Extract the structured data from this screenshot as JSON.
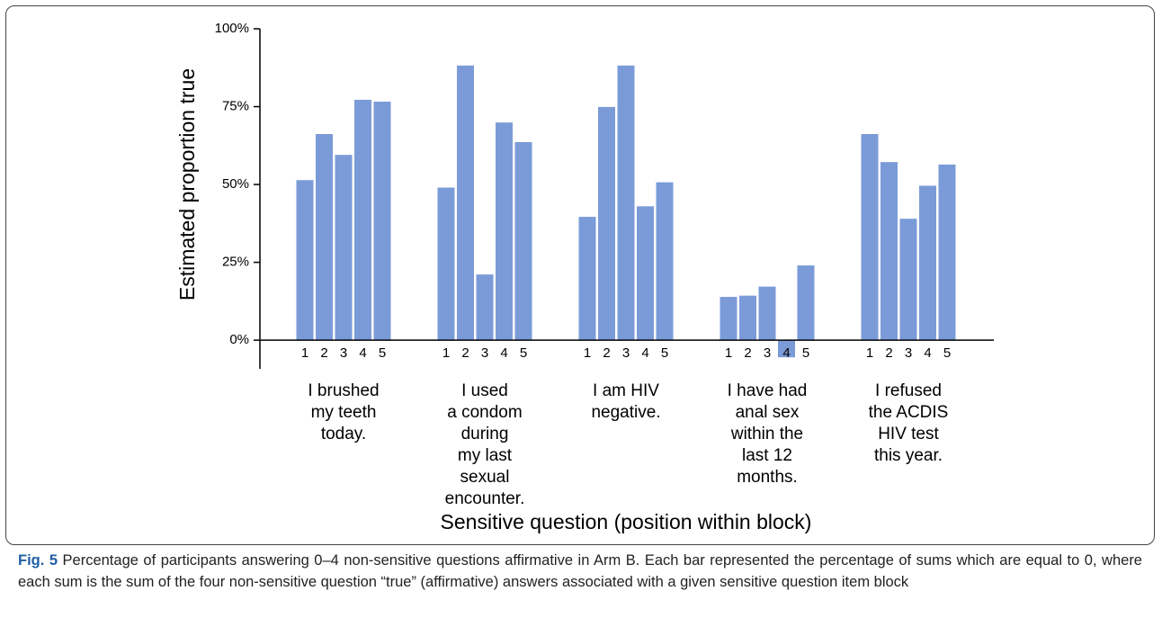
{
  "chart_data": {
    "type": "bar",
    "ylabel": "Estimated proportion true",
    "xlabel": "Sensitive question (position within block)",
    "categories": [
      [
        "I brushed",
        "my teeth",
        "today."
      ],
      [
        "I used",
        "a condom",
        "during",
        "my last",
        "sexual",
        "encounter."
      ],
      [
        "I am HIV",
        "negative."
      ],
      [
        "I have had",
        "anal sex",
        "within the",
        "last 12",
        "months."
      ],
      [
        "I refused",
        "the ACDIS",
        "HIV test",
        "this year."
      ]
    ],
    "series": [
      {
        "name": "1",
        "color": "#7b9bd8",
        "values": [
          51.4,
          49.0,
          39.6,
          13.9,
          66.2
        ]
      },
      {
        "name": "2",
        "color": "#7b9bd8",
        "values": [
          66.2,
          88.2,
          74.9,
          14.3,
          57.2
        ]
      },
      {
        "name": "3",
        "color": "#7b9bd8",
        "values": [
          59.5,
          21.1,
          88.2,
          17.2,
          39.0
        ]
      },
      {
        "name": "4",
        "color": "#7b9bd8",
        "values": [
          77.2,
          69.9,
          43.0,
          -5.5,
          49.6
        ]
      },
      {
        "name": "5",
        "color": "#7b9bd8",
        "values": [
          76.6,
          63.6,
          50.7,
          24.0,
          56.4
        ]
      }
    ],
    "ylim": [
      -9.2,
      100
    ],
    "yticks": [
      {
        "value": 0,
        "label": "0%"
      },
      {
        "value": 25,
        "label": "25%"
      },
      {
        "value": 50,
        "label": "50%"
      },
      {
        "value": 75,
        "label": "75%"
      },
      {
        "value": 100,
        "label": "100%"
      }
    ]
  },
  "caption": {
    "label": "Fig. 5",
    "text": "Percentage of participants answering 0–4 non-sensitive questions affirmative in Arm B. Each bar represented the percentage of sums which are equal to 0, where each sum is the sum of the four non-sensitive question “true” (affirmative) answers associated with a given sensitive question item block"
  }
}
